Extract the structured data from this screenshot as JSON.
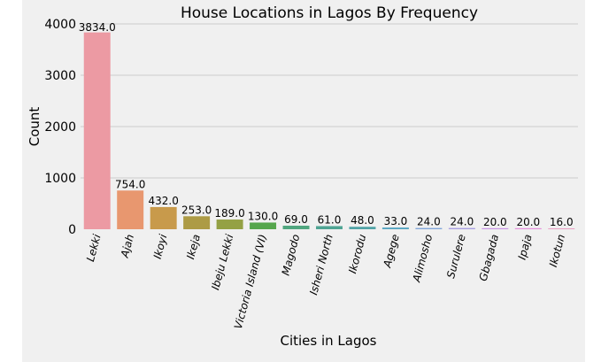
{
  "chart_data": {
    "type": "bar",
    "title": "House Locations in Lagos By Frequency",
    "xlabel": "Cities in Lagos",
    "ylabel": "Count",
    "ylim": [
      0,
      4000
    ],
    "yticks": [
      0,
      1000,
      2000,
      3000,
      4000
    ],
    "grid": true,
    "categories": [
      "Lekki",
      "Ajah",
      "Ikoyi",
      "Ikeja",
      "Ibeju Lekki",
      "Victoria Island (VI)",
      "Magodo",
      "Isheri North",
      "Ikorodu",
      "Agege",
      "Alimosho",
      "Surulere",
      "Gbagada",
      "Ipaja",
      "Ikotun"
    ],
    "values": [
      3834.0,
      754.0,
      432.0,
      253.0,
      189.0,
      130.0,
      69.0,
      61.0,
      48.0,
      33.0,
      24.0,
      24.0,
      20.0,
      20.0,
      16.0
    ],
    "data_labels": [
      "3834.0",
      "754.0",
      "432.0",
      "253.0",
      "189.0",
      "130.0",
      "69.0",
      "61.0",
      "48.0",
      "33.0",
      "24.0",
      "24.0",
      "20.0",
      "20.0",
      "16.0"
    ],
    "colors": [
      "#ec9aa3",
      "#e8976f",
      "#c89a4b",
      "#ad9b45",
      "#94a144",
      "#55a64c",
      "#50a67f",
      "#4fa493",
      "#51a3a6",
      "#58a6c2",
      "#82a6d9",
      "#a9a0e2",
      "#c893e6",
      "#e68fdd",
      "#ea98c0"
    ]
  }
}
